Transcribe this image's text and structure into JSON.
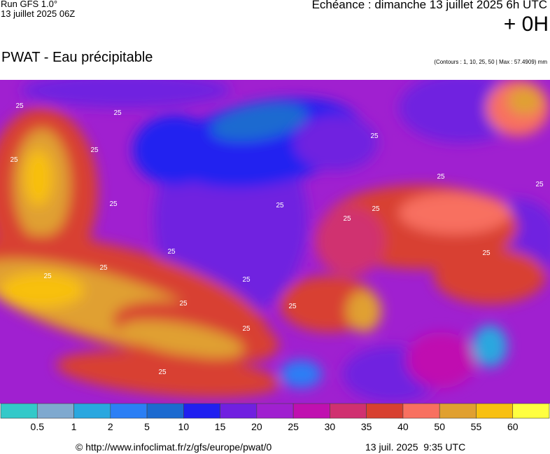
{
  "header": {
    "run": "Run GFS 1.0°",
    "run_date": "13 juillet 2025 06Z",
    "echeance": "Echéance : dimanche 13 juillet 2025 6h UTC",
    "offset": "+ 0H",
    "title": "PWAT - Eau précipitable",
    "contours": "(Contours : 1, 10, 25, 50 | Max : 57.4909) mm"
  },
  "map": {
    "contour_labels": [
      "25",
      "25",
      "25",
      "25",
      "25",
      "25",
      "25",
      "25",
      "25",
      "25",
      "25",
      "25",
      "25",
      "25",
      "25",
      "25",
      "25",
      "25",
      "25",
      "25"
    ]
  },
  "legend": {
    "colors": [
      "#33c9c9",
      "#7fa9cf",
      "#29a7df",
      "#2b7ff5",
      "#1c6ad0",
      "#2020f0",
      "#7020e0",
      "#a020d0",
      "#c010b0",
      "#d03070",
      "#d84030",
      "#f87060",
      "#e0a030",
      "#f8c010",
      "#ffff40"
    ],
    "labels": [
      0.5,
      1,
      2,
      5,
      10,
      15,
      20,
      25,
      30,
      35,
      40,
      50,
      55,
      60
    ]
  },
  "footer": {
    "url": "© http://www.infoclimat.fr/z/gfs/europe/pwat/0",
    "timestamp": "13 juil. 2025  9:35 UTC"
  }
}
